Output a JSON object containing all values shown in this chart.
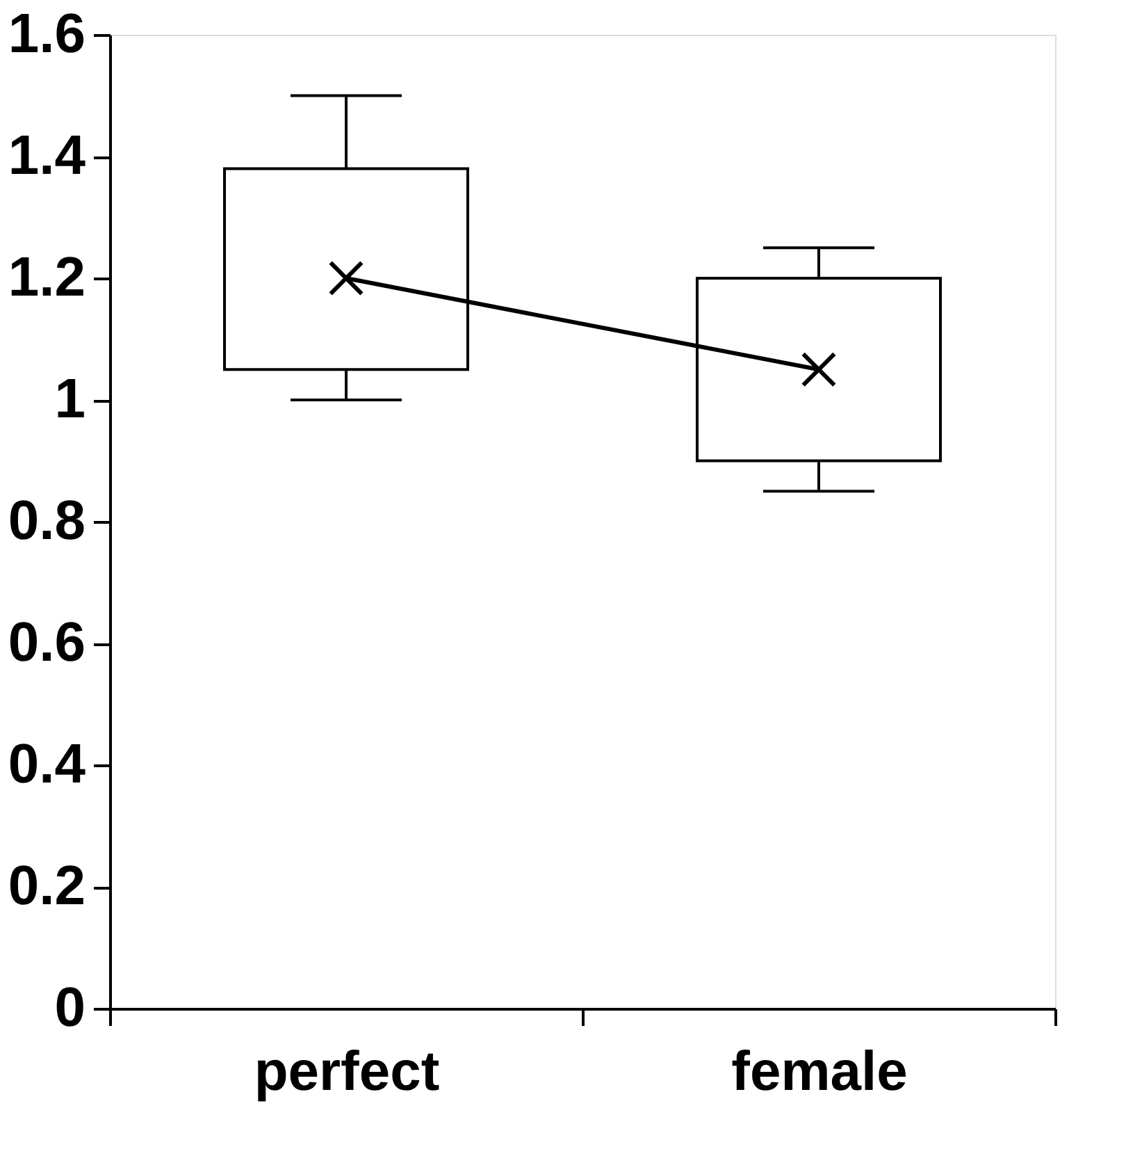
{
  "chart_data": {
    "type": "box",
    "categories": [
      "perfect",
      "female"
    ],
    "boxes": [
      {
        "low": 1.0,
        "q1": 1.05,
        "q3": 1.38,
        "high": 1.5
      },
      {
        "low": 0.85,
        "q1": 0.9,
        "q3": 1.2,
        "high": 1.25
      }
    ],
    "series": [
      {
        "type": "line",
        "color": "#000000",
        "values": [
          1.2,
          1.05
        ],
        "marker": "cross",
        "line_style": "solid"
      }
    ],
    "ylim": [
      0,
      1.6
    ],
    "yticks": [
      0,
      0.2,
      0.4,
      0.6,
      0.8,
      1,
      1.2,
      1.4,
      1.6
    ],
    "grid": false
  }
}
